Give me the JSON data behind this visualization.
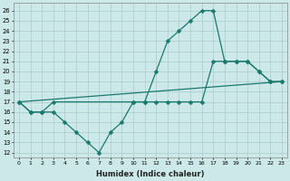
{
  "line1_x": [
    0,
    1,
    2,
    3,
    4,
    5,
    6,
    7,
    8,
    9,
    10,
    11,
    12,
    13,
    14,
    15,
    16,
    17,
    18,
    19,
    20,
    21,
    22,
    23
  ],
  "line1_y": [
    17,
    16,
    16,
    16,
    15,
    14,
    13,
    12,
    14,
    15,
    17,
    17,
    20,
    23,
    24,
    25,
    26,
    26,
    21,
    21,
    21,
    20,
    19,
    19
  ],
  "line2_x": [
    0,
    23
  ],
  "line2_y": [
    17,
    19
  ],
  "line3_x": [
    0,
    1,
    2,
    3,
    10,
    11,
    12,
    13,
    14,
    15,
    16,
    17,
    18,
    19,
    20,
    21,
    22,
    23
  ],
  "line3_y": [
    17,
    16,
    16,
    17,
    17,
    17,
    17,
    17,
    17,
    17,
    17,
    21,
    21,
    21,
    21,
    20,
    19,
    19
  ],
  "line_color": "#1a7a6e",
  "bg_color": "#cce8e8",
  "grid_color": "#aacccc",
  "xlabel": "Humidex (Indice chaleur)",
  "ylabel_ticks": [
    12,
    13,
    14,
    15,
    16,
    17,
    18,
    19,
    20,
    21,
    22,
    23,
    24,
    25,
    26
  ],
  "xlim": [
    -0.5,
    23.5
  ],
  "ylim": [
    11.5,
    26.8
  ],
  "markersize": 2.5,
  "linewidth": 0.9
}
